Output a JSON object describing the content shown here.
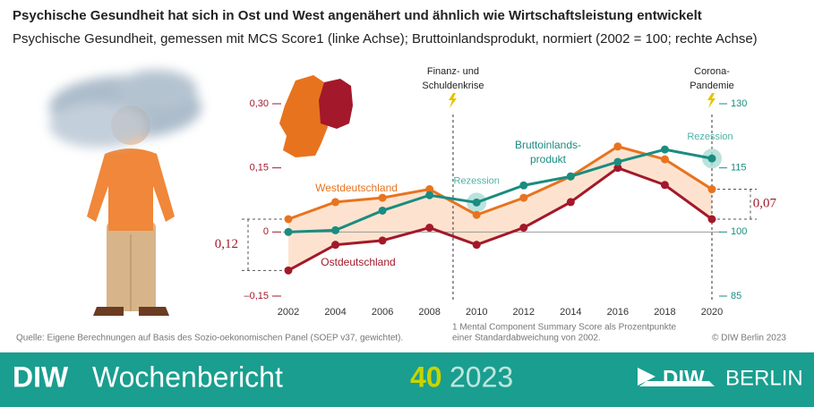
{
  "header": {
    "title": "Psychische Gesundheit hat sich in Ost und West angenähert und ähnlich wie Wirtschaftsleistung entwickelt",
    "subtitle": "Psychische Gesundheit, gemessen mit MCS Score1 (linke Achse); Bruttoinlandsprodukt, normiert (2002 = 100; rechte Achse)"
  },
  "chart_data": {
    "type": "line",
    "x": [
      2002,
      2004,
      2006,
      2008,
      2010,
      2012,
      2014,
      2016,
      2018,
      2020
    ],
    "xlim": [
      2002,
      2020
    ],
    "xticks": [
      2002,
      2004,
      2006,
      2008,
      2010,
      2012,
      2014,
      2016,
      2018,
      2020
    ],
    "ylim": [
      -0.15,
      0.3
    ],
    "yticks": [
      {
        "value": -0.15,
        "label": "–0,15"
      },
      0,
      {
        "value": 0.15,
        "label": "0,15"
      },
      {
        "value": 0.3,
        "label": "0,30"
      }
    ],
    "y2lim": [
      85,
      130
    ],
    "y2ticks": [
      85,
      100,
      115,
      130
    ],
    "series": [
      {
        "name_lines": [
          "Westdeutschland"
        ],
        "color": "#e8731f",
        "values": [
          0.03,
          0.07,
          0.08,
          0.1,
          0.04,
          0.08,
          0.13,
          0.2,
          0.17,
          0.1
        ]
      },
      {
        "name_lines": [
          "Ostdeutschland"
        ],
        "color": "#a3182a",
        "values": [
          -0.09,
          -0.03,
          -0.02,
          0.01,
          -0.03,
          0.01,
          0.07,
          0.15,
          0.11,
          0.03
        ]
      },
      {
        "name_lines": [
          "Bruttoinlands-",
          "produkt"
        ],
        "color": "#1a8c80",
        "axis": "y2",
        "values": [
          100,
          100.4,
          105,
          108.6,
          106.9,
          110.9,
          113,
          116.4,
          119.3,
          117.2
        ]
      }
    ],
    "band_color": "#fde3cf",
    "events": [
      {
        "x": 2009,
        "label_lines": [
          "Finanz- und",
          "Schuldenkrise"
        ]
      },
      {
        "x": 2020,
        "label_lines": [
          "Corona-",
          "Pandemie"
        ]
      }
    ],
    "recessions": [
      {
        "x": 2010,
        "label": "Rezession"
      },
      {
        "x": 2020,
        "label": "Rezession"
      }
    ],
    "gaps": [
      {
        "x": 2002,
        "label": "0,12"
      },
      {
        "x": 2020,
        "label": "0,07"
      }
    ]
  },
  "footnote": [
    "1  Mental Component Summary Score als Prozentpunkte",
    "einer Standardabweichung von 2002."
  ],
  "source": "Quelle: Eigene Berechnungen auf Basis des Sozio-oekonomischen Panel (SOEP v37, gewichtet).",
  "copyright": "© DIW Berlin 2023",
  "footer": {
    "brand": "DIW",
    "publication": "Wochenbericht",
    "issue": "40",
    "year": "2023",
    "logo_brand": "DIW",
    "logo_city": "BERLIN"
  }
}
